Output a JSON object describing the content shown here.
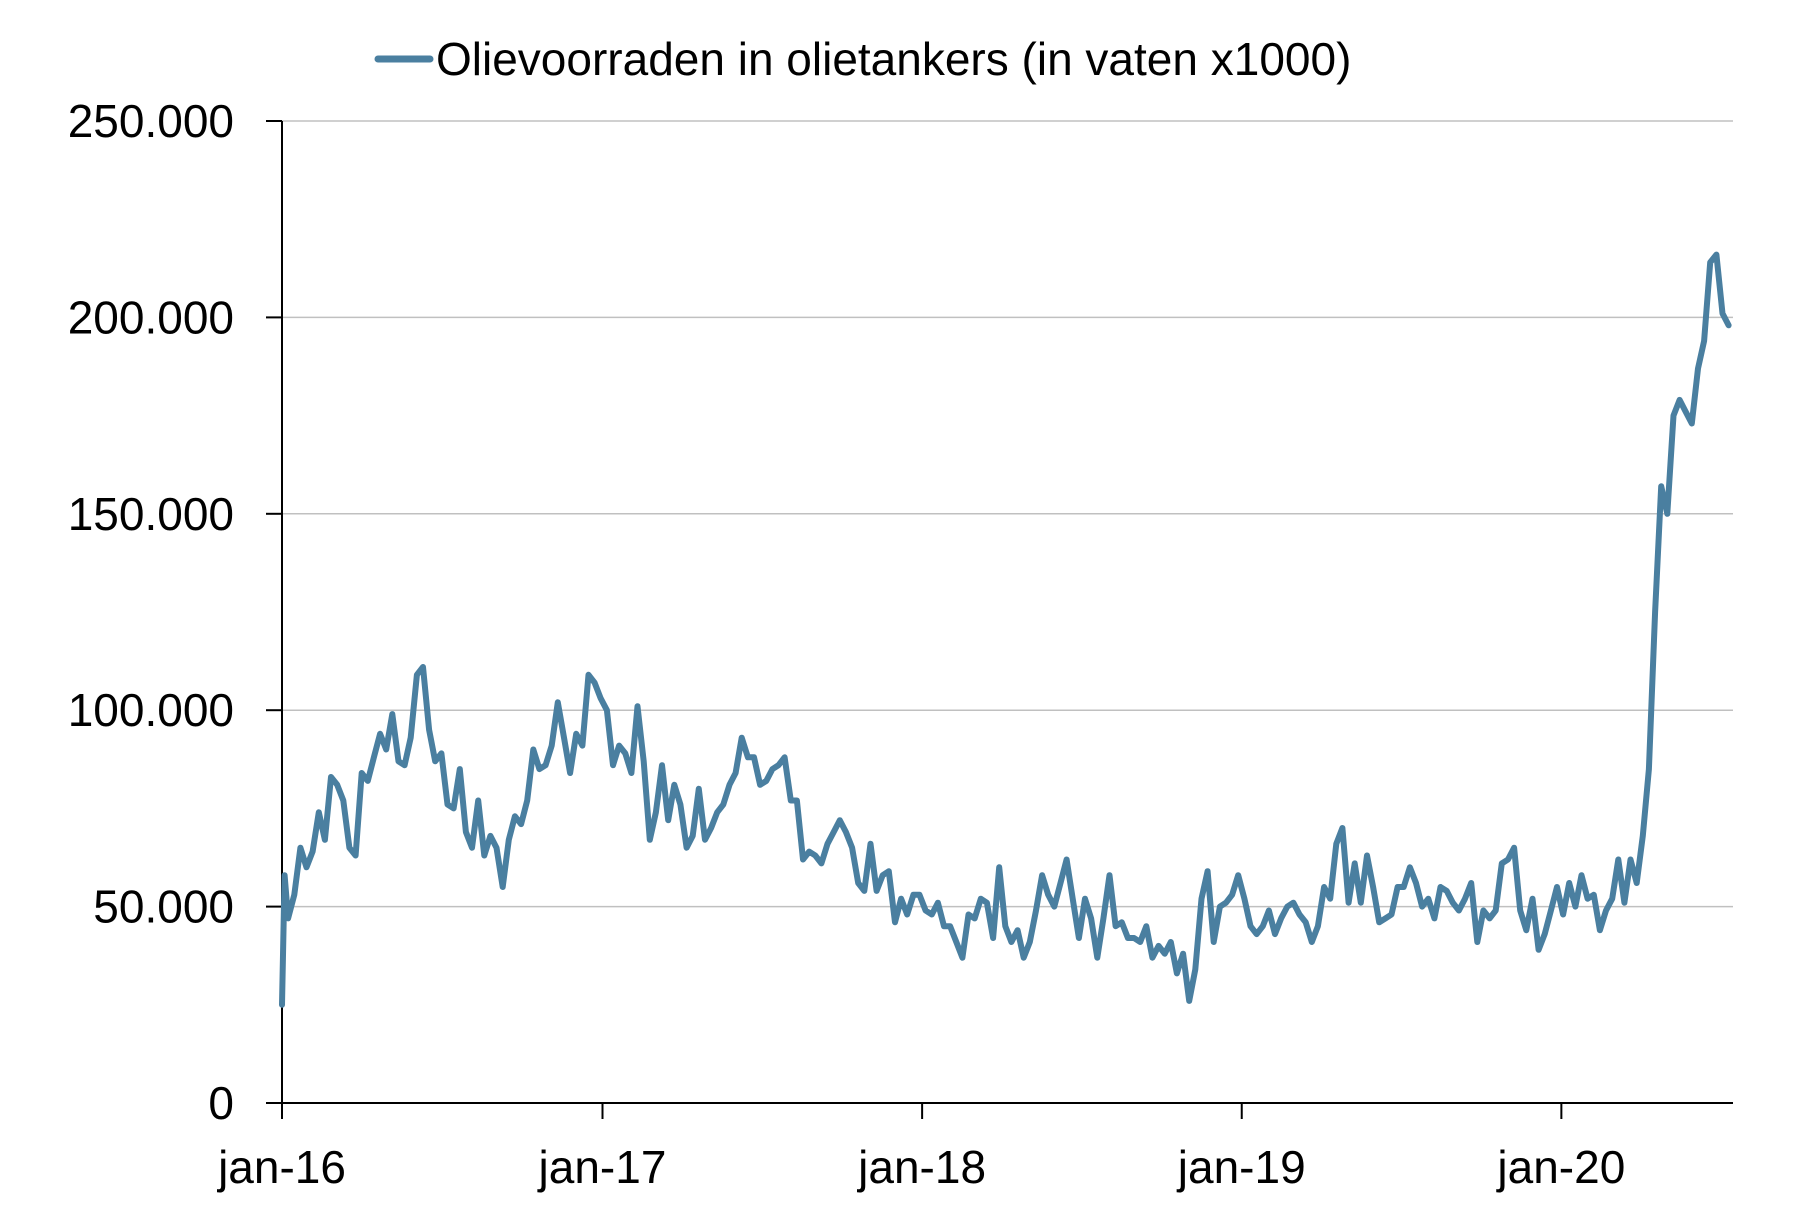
{
  "chart_data": {
    "type": "line",
    "series": [
      {
        "name": "Olievoorraden in olietankers (in vaten x1000)",
        "color": "#4a7fa0",
        "x": [
          "2016-01-01",
          "2016-01-04",
          "2016-01-08",
          "2016-01-15",
          "2016-01-22",
          "2016-01-29",
          "2016-02-05",
          "2016-02-12",
          "2016-02-19",
          "2016-02-26",
          "2016-03-04",
          "2016-03-11",
          "2016-03-18",
          "2016-03-25",
          "2016-04-01",
          "2016-04-08",
          "2016-04-15",
          "2016-04-22",
          "2016-04-29",
          "2016-05-06",
          "2016-05-13",
          "2016-05-20",
          "2016-05-27",
          "2016-06-03",
          "2016-06-10",
          "2016-06-17",
          "2016-06-24",
          "2016-07-01",
          "2016-07-08",
          "2016-07-15",
          "2016-07-22",
          "2016-07-29",
          "2016-08-05",
          "2016-08-12",
          "2016-08-19",
          "2016-08-26",
          "2016-09-02",
          "2016-09-09",
          "2016-09-16",
          "2016-09-23",
          "2016-09-30",
          "2016-10-07",
          "2016-10-14",
          "2016-10-21",
          "2016-10-28",
          "2016-11-04",
          "2016-11-11",
          "2016-11-18",
          "2016-11-25",
          "2016-12-02",
          "2016-12-09",
          "2016-12-16",
          "2016-12-23",
          "2016-12-30",
          "2017-01-06",
          "2017-01-13",
          "2017-01-20",
          "2017-01-27",
          "2017-02-03",
          "2017-02-10",
          "2017-02-17",
          "2017-02-24",
          "2017-03-03",
          "2017-03-10",
          "2017-03-17",
          "2017-03-24",
          "2017-03-31",
          "2017-04-07",
          "2017-04-14",
          "2017-04-21",
          "2017-04-28",
          "2017-05-05",
          "2017-05-12",
          "2017-05-19",
          "2017-05-26",
          "2017-06-02",
          "2017-06-09",
          "2017-06-16",
          "2017-06-23",
          "2017-06-30",
          "2017-07-07",
          "2017-07-14",
          "2017-07-21",
          "2017-07-28",
          "2017-08-04",
          "2017-08-11",
          "2017-08-18",
          "2017-08-25",
          "2017-09-01",
          "2017-09-08",
          "2017-09-15",
          "2017-09-22",
          "2017-09-29",
          "2017-10-06",
          "2017-10-13",
          "2017-10-20",
          "2017-10-27",
          "2017-11-03",
          "2017-11-10",
          "2017-11-17",
          "2017-11-24",
          "2017-12-01",
          "2017-12-08",
          "2017-12-15",
          "2017-12-22",
          "2017-12-29",
          "2018-01-05",
          "2018-01-12",
          "2018-01-19",
          "2018-01-26",
          "2018-02-02",
          "2018-02-09",
          "2018-02-16",
          "2018-02-23",
          "2018-03-02",
          "2018-03-09",
          "2018-03-16",
          "2018-03-23",
          "2018-03-30",
          "2018-04-06",
          "2018-04-13",
          "2018-04-20",
          "2018-04-27",
          "2018-05-04",
          "2018-05-11",
          "2018-05-18",
          "2018-05-25",
          "2018-06-01",
          "2018-06-08",
          "2018-06-15",
          "2018-06-22",
          "2018-06-29",
          "2018-07-06",
          "2018-07-13",
          "2018-07-20",
          "2018-07-27",
          "2018-08-03",
          "2018-08-10",
          "2018-08-17",
          "2018-08-24",
          "2018-08-31",
          "2018-09-07",
          "2018-09-14",
          "2018-09-21",
          "2018-09-28",
          "2018-10-05",
          "2018-10-12",
          "2018-10-19",
          "2018-10-26",
          "2018-11-02",
          "2018-11-09",
          "2018-11-16",
          "2018-11-23",
          "2018-11-30",
          "2018-12-07",
          "2018-12-14",
          "2018-12-21",
          "2018-12-28",
          "2019-01-04",
          "2019-01-11",
          "2019-01-18",
          "2019-01-25",
          "2019-02-01",
          "2019-02-08",
          "2019-02-15",
          "2019-02-22",
          "2019-03-01",
          "2019-03-08",
          "2019-03-15",
          "2019-03-22",
          "2019-03-29",
          "2019-04-05",
          "2019-04-12",
          "2019-04-19",
          "2019-04-26",
          "2019-05-03",
          "2019-05-10",
          "2019-05-17",
          "2019-05-24",
          "2019-05-31",
          "2019-06-07",
          "2019-06-14",
          "2019-06-21",
          "2019-06-28",
          "2019-07-05",
          "2019-07-12",
          "2019-07-19",
          "2019-07-26",
          "2019-08-02",
          "2019-08-09",
          "2019-08-16",
          "2019-08-23",
          "2019-08-30",
          "2019-09-06",
          "2019-09-13",
          "2019-09-20",
          "2019-09-27",
          "2019-10-04",
          "2019-10-11",
          "2019-10-18",
          "2019-10-25",
          "2019-11-01",
          "2019-11-08",
          "2019-11-15",
          "2019-11-22",
          "2019-11-29",
          "2019-12-06",
          "2019-12-13",
          "2019-12-20",
          "2019-12-27",
          "2020-01-03",
          "2020-01-10",
          "2020-01-17",
          "2020-01-24",
          "2020-01-31",
          "2020-02-07",
          "2020-02-14",
          "2020-02-21",
          "2020-02-28",
          "2020-03-06",
          "2020-03-13",
          "2020-03-20",
          "2020-03-27",
          "2020-04-03",
          "2020-04-10",
          "2020-04-17",
          "2020-04-24",
          "2020-05-01",
          "2020-05-08",
          "2020-05-15",
          "2020-05-22",
          "2020-05-29",
          "2020-06-05",
          "2020-06-12",
          "2020-06-19",
          "2020-06-26",
          "2020-07-03",
          "2020-07-10"
        ],
        "values": [
          25000,
          58000,
          47000,
          53000,
          65000,
          60000,
          64000,
          74000,
          67000,
          83000,
          81000,
          77000,
          65000,
          63000,
          84000,
          82000,
          88000,
          94000,
          90000,
          99000,
          87000,
          86000,
          93000,
          109000,
          111000,
          95000,
          87000,
          89000,
          76000,
          75000,
          85000,
          69000,
          65000,
          77000,
          63000,
          68000,
          65000,
          55000,
          67000,
          73000,
          71000,
          77000,
          90000,
          85000,
          86000,
          91000,
          102000,
          93000,
          84000,
          94000,
          91000,
          109000,
          107000,
          103000,
          100000,
          86000,
          91000,
          89000,
          84000,
          101000,
          87000,
          67000,
          74000,
          86000,
          72000,
          81000,
          76000,
          65000,
          68000,
          80000,
          67000,
          70000,
          74000,
          76000,
          81000,
          84000,
          93000,
          88000,
          88000,
          81000,
          82000,
          85000,
          86000,
          88000,
          77000,
          77000,
          62000,
          64000,
          63000,
          61000,
          66000,
          69000,
          72000,
          69000,
          65000,
          56000,
          54000,
          66000,
          54000,
          58000,
          59000,
          46000,
          52000,
          48000,
          53000,
          53000,
          49000,
          48000,
          51000,
          45000,
          45000,
          41000,
          37000,
          48000,
          47000,
          52000,
          51000,
          42000,
          60000,
          45000,
          41000,
          44000,
          37000,
          41000,
          49000,
          58000,
          53000,
          50000,
          56000,
          62000,
          52000,
          42000,
          52000,
          47000,
          37000,
          47000,
          58000,
          45000,
          46000,
          42000,
          42000,
          41000,
          45000,
          37000,
          40000,
          38000,
          41000,
          33000,
          38000,
          26000,
          34000,
          52000,
          59000,
          41000,
          50000,
          51000,
          53000,
          58000,
          52000,
          45000,
          43000,
          45000,
          49000,
          43000,
          47000,
          50000,
          51000,
          48000,
          46000,
          41000,
          45000,
          55000,
          52000,
          66000,
          70000,
          51000,
          61000,
          51000,
          63000,
          55000,
          46000,
          47000,
          48000,
          55000,
          55000,
          60000,
          56000,
          50000,
          52000,
          47000,
          55000,
          54000,
          51000,
          49000,
          52000,
          56000,
          41000,
          49000,
          47000,
          49000,
          61000,
          62000,
          65000,
          49000,
          44000,
          52000,
          39000,
          43000,
          49000,
          55000,
          48000,
          56000,
          50000,
          58000,
          52000,
          53000,
          44000,
          49000,
          52000,
          62000,
          51000,
          62000,
          56000,
          68000,
          85000,
          125000,
          157000,
          150000,
          175000,
          179000,
          176000,
          173000,
          187000,
          194000,
          214000,
          216000,
          201000,
          198000
        ]
      }
    ],
    "yticks": [
      "0",
      "50.000",
      "100.000",
      "150.000",
      "200.000",
      "250.000"
    ],
    "ytick_values": [
      0,
      50000,
      100000,
      150000,
      200000,
      250000
    ],
    "xticks": [
      "jan-16",
      "jan-17",
      "jan-18",
      "jan-19",
      "jan-20"
    ],
    "xtick_values": [
      "2016-01-01",
      "2017-01-01",
      "2018-01-01",
      "2019-01-01",
      "2020-01-01"
    ],
    "xrange": [
      "2016-01-01",
      "2020-07-15"
    ],
    "ylim": [
      0,
      250000
    ],
    "grid": "horizontal",
    "legend": "top-center",
    "colors": {
      "axis": "#000000",
      "grid": "#c0c0c0",
      "series": "#4a7fa0"
    }
  }
}
